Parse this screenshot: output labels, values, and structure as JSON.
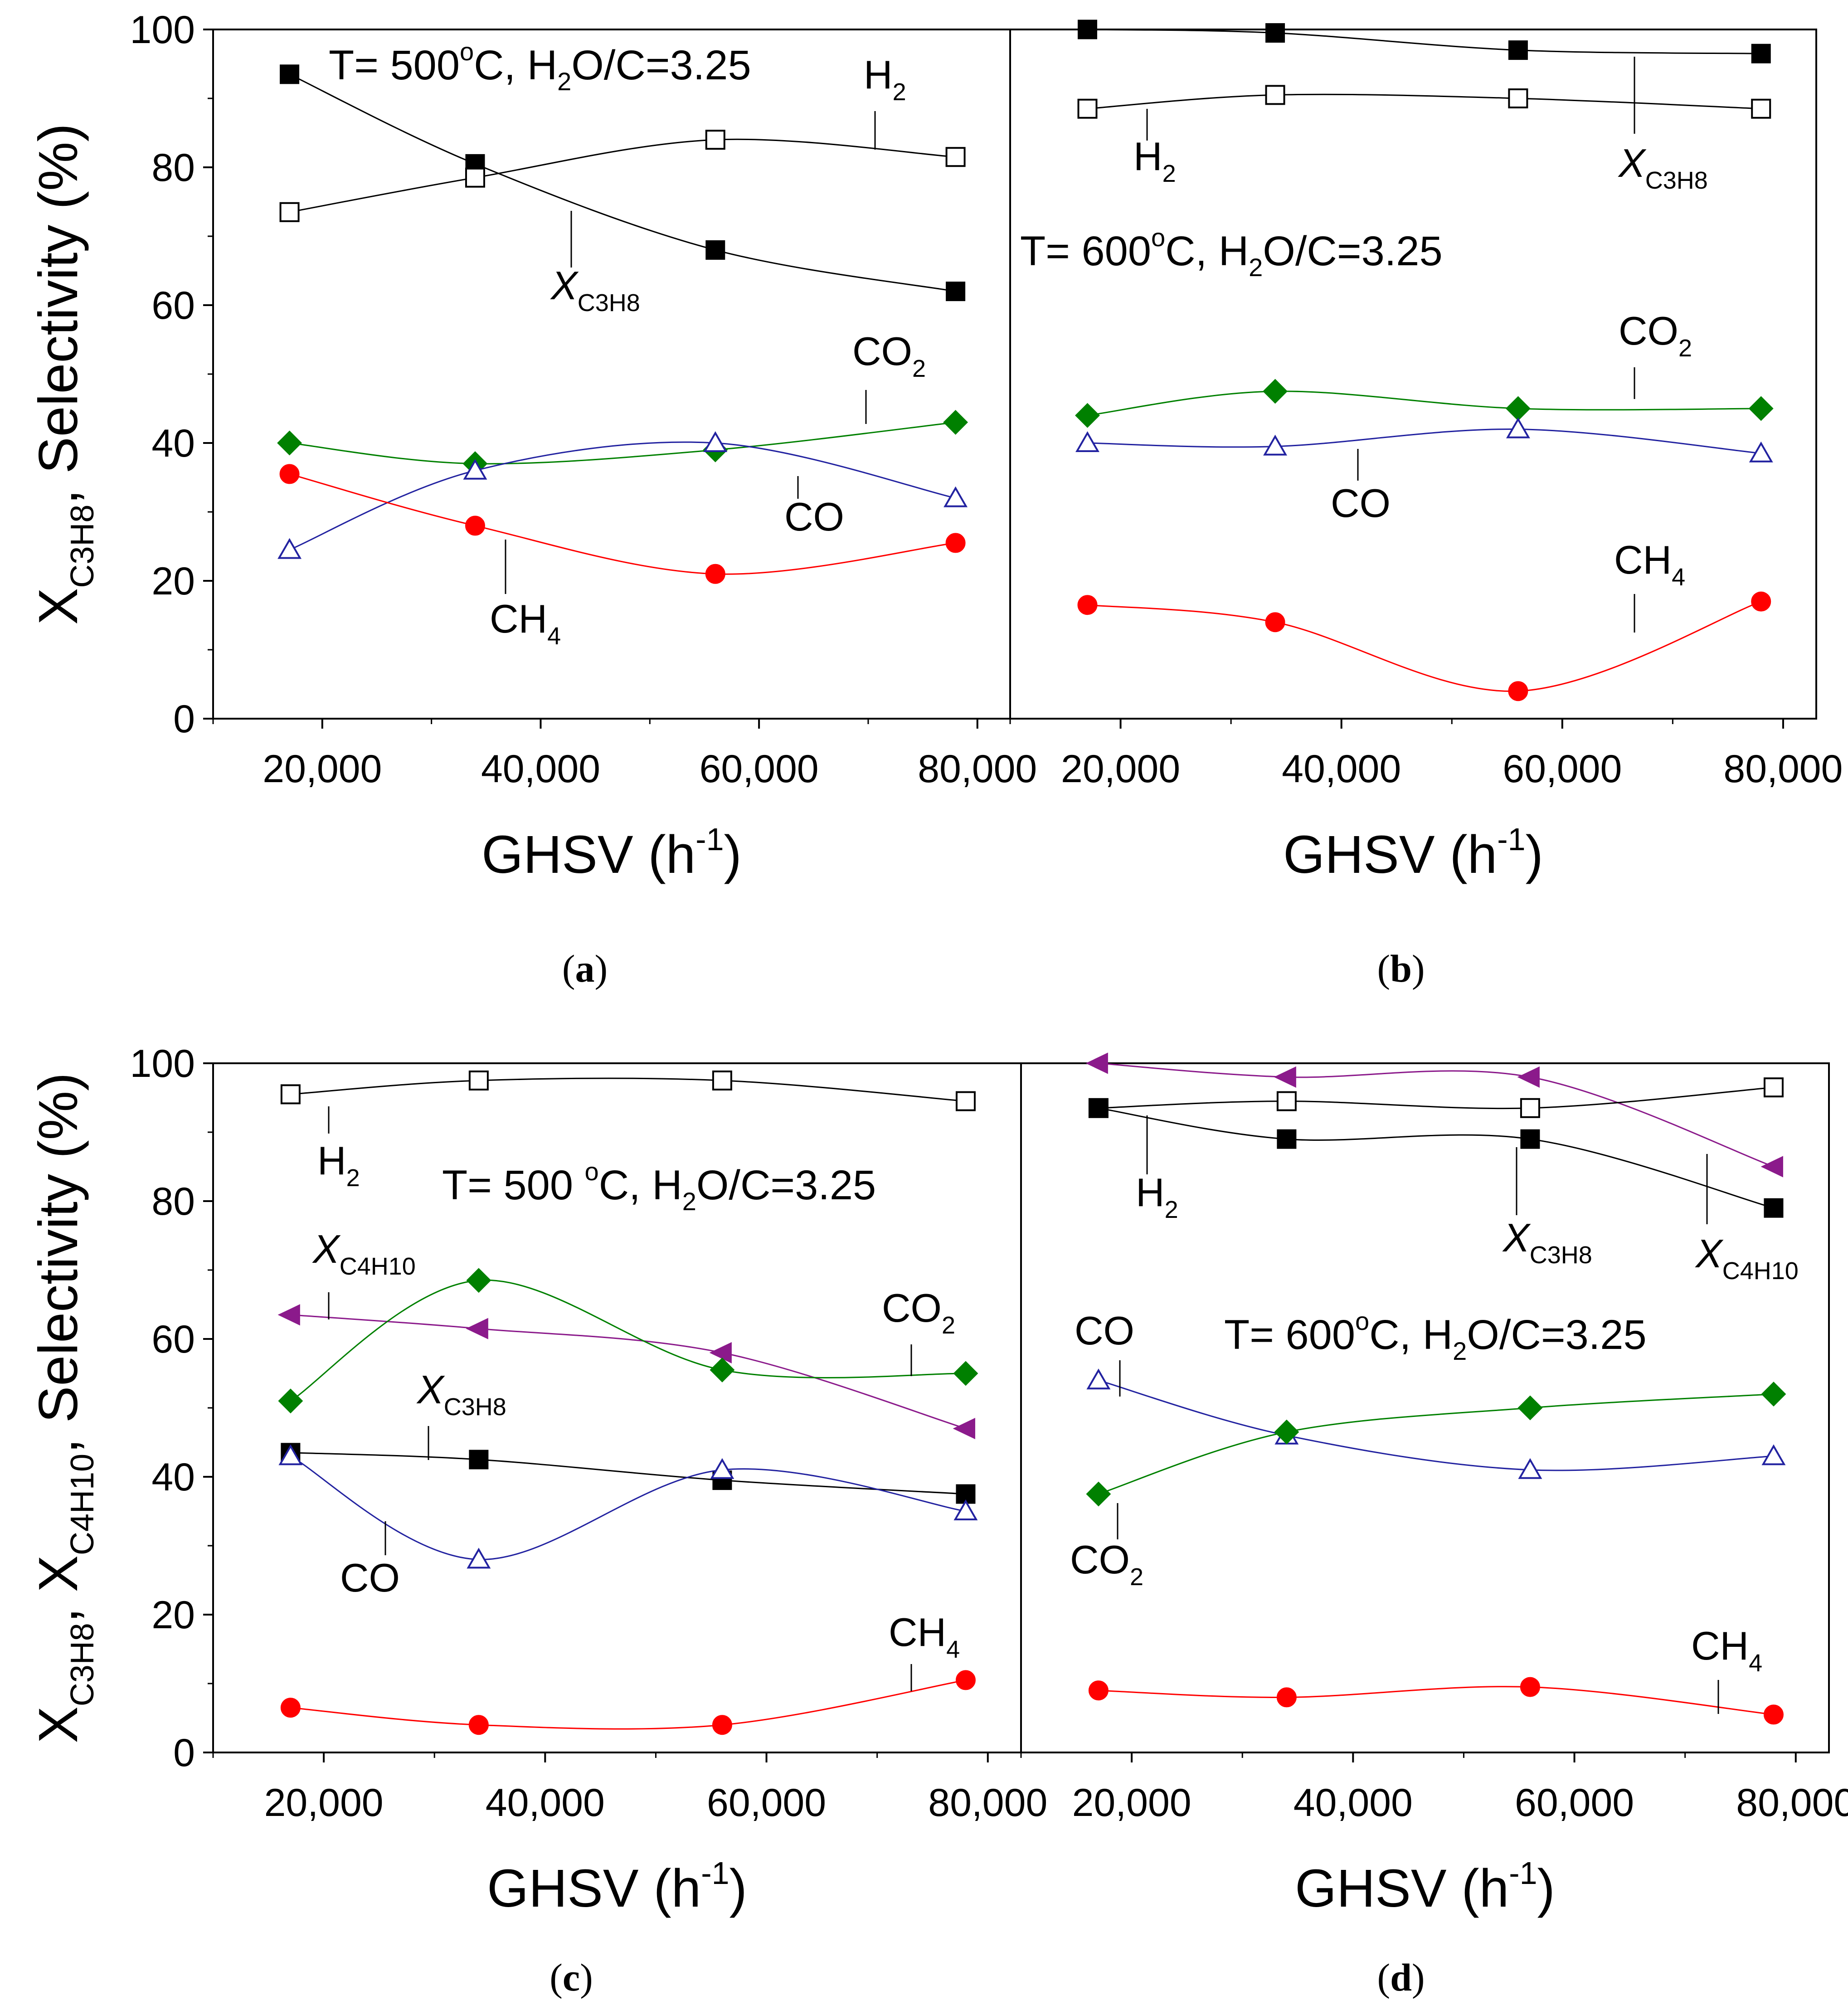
{
  "chart_data": [
    {
      "type": "line",
      "panel": "(a)",
      "caption": "a",
      "annotation": {
        "pre": "T= 500",
        "sup": "o",
        "mid": "C, H",
        "sub": "2",
        "post": "O/C=3.25"
      },
      "xlabel": "GHSV (h",
      "xlabel_sup": "-1",
      "xlabel_end": ")",
      "ylabel": "X",
      "ylabel_sub": "C3H8",
      "ylabel_rest": ", Selectivity (%)",
      "xlim": [
        10000,
        83000
      ],
      "ylim": [
        0,
        100
      ],
      "xticks": [
        20000,
        40000,
        60000,
        80000
      ],
      "xtick_labels": [
        "20,000",
        "40,000",
        "60,000",
        "80,000"
      ],
      "yticks": [
        0,
        20,
        40,
        60,
        80,
        100
      ],
      "ytick_labels": [
        "0",
        "20",
        "40",
        "60",
        "80",
        "100"
      ],
      "series": [
        {
          "name": "X_C3H8",
          "label_main": "X",
          "label_sub": "C3H8",
          "marker": "square-filled",
          "color": "#000000",
          "x": [
            17000,
            34000,
            56000,
            78000
          ],
          "values": [
            93.5,
            80.5,
            68,
            62
          ]
        },
        {
          "name": "H2",
          "label_main": "H",
          "label_sub": "2",
          "marker": "square-open",
          "color": "#000000",
          "x": [
            17000,
            34000,
            56000,
            78000
          ],
          "values": [
            73.5,
            78.5,
            84,
            81.5
          ]
        },
        {
          "name": "CO2",
          "label_main": "CO",
          "label_sub": "2",
          "marker": "diamond",
          "color": "#008000",
          "x": [
            17000,
            34000,
            56000,
            78000
          ],
          "values": [
            40,
            37,
            39,
            43
          ]
        },
        {
          "name": "CO",
          "label_main": "CO",
          "label_sub": "",
          "marker": "triangle-open",
          "color": "#2222a0",
          "x": [
            17000,
            34000,
            56000,
            78000
          ],
          "values": [
            24.5,
            36,
            40,
            32
          ]
        },
        {
          "name": "CH4",
          "label_main": "CH",
          "label_sub": "4",
          "marker": "circle",
          "color": "#ff0000",
          "x": [
            17000,
            34000,
            56000,
            78000
          ],
          "values": [
            35.5,
            28,
            21,
            25.5
          ]
        }
      ]
    },
    {
      "type": "line",
      "panel": "(b)",
      "caption": "b",
      "annotation": {
        "pre": "T= 600",
        "sup": "o",
        "mid": "C, H",
        "sub": "2",
        "post": "O/C=3.25"
      },
      "xlabel": "GHSV (h",
      "xlabel_sup": "-1",
      "xlabel_end": ")",
      "xlim": [
        10000,
        83000
      ],
      "ylim": [
        0,
        100
      ],
      "xticks": [
        20000,
        40000,
        60000,
        80000
      ],
      "xtick_labels": [
        "20,000",
        "40,000",
        "60,000",
        "80,000"
      ],
      "series": [
        {
          "name": "X_C3H8",
          "label_main": "X",
          "label_sub": "C3H8",
          "marker": "square-filled",
          "color": "#000000",
          "x": [
            17000,
            34000,
            56000,
            78000
          ],
          "values": [
            100,
            99.5,
            97,
            96.5
          ]
        },
        {
          "name": "H2",
          "label_main": "H",
          "label_sub": "2",
          "marker": "square-open",
          "color": "#000000",
          "x": [
            17000,
            34000,
            56000,
            78000
          ],
          "values": [
            88.5,
            90.5,
            90,
            88.5
          ]
        },
        {
          "name": "CO2",
          "label_main": "CO",
          "label_sub": "2",
          "marker": "diamond",
          "color": "#008000",
          "x": [
            17000,
            34000,
            56000,
            78000
          ],
          "values": [
            44,
            47.5,
            45,
            45
          ]
        },
        {
          "name": "CO",
          "label_main": "CO",
          "label_sub": "",
          "marker": "triangle-open",
          "color": "#2222a0",
          "x": [
            17000,
            34000,
            56000,
            78000
          ],
          "values": [
            40,
            39.5,
            42,
            38.5
          ]
        },
        {
          "name": "CH4",
          "label_main": "CH",
          "label_sub": "4",
          "marker": "circle",
          "color": "#ff0000",
          "x": [
            17000,
            34000,
            56000,
            78000
          ],
          "values": [
            16.5,
            14,
            4,
            17
          ]
        }
      ]
    },
    {
      "type": "line",
      "panel": "(c)",
      "caption": "c",
      "annotation": {
        "pre": "T= 500 ",
        "sup": "o",
        "mid": "C, H",
        "sub": "2",
        "post": "O/C=3.25"
      },
      "xlabel": "GHSV (h",
      "xlabel_sup": "-1",
      "xlabel_end": ")",
      "ylabel": "X",
      "ylabel_sub": "C3H8",
      "ylabel_mid": ", X",
      "ylabel_sub2": "C4H10",
      "ylabel_rest": ", Selectivity (%)",
      "xlim": [
        10000,
        83000
      ],
      "ylim": [
        0,
        100
      ],
      "xticks": [
        20000,
        40000,
        60000,
        80000
      ],
      "xtick_labels": [
        "20,000",
        "40,000",
        "60,000",
        "80,000"
      ],
      "yticks": [
        0,
        20,
        40,
        60,
        80,
        100
      ],
      "ytick_labels": [
        "0",
        "20",
        "40",
        "60",
        "80",
        "100"
      ],
      "series": [
        {
          "name": "H2",
          "label_main": "H",
          "label_sub": "2",
          "marker": "square-open",
          "color": "#000000",
          "x": [
            17000,
            34000,
            56000,
            78000
          ],
          "values": [
            95.5,
            97.5,
            97.5,
            94.5
          ]
        },
        {
          "name": "X_C4H10",
          "label_main": "X",
          "label_sub": "C4H10",
          "marker": "triangle-left",
          "color": "#8b1a8b",
          "x": [
            17000,
            34000,
            56000,
            78000
          ],
          "values": [
            63.5,
            61.5,
            58,
            47
          ]
        },
        {
          "name": "CO2",
          "label_main": "CO",
          "label_sub": "2",
          "marker": "diamond",
          "color": "#008000",
          "x": [
            17000,
            34000,
            56000,
            78000
          ],
          "values": [
            51,
            68.5,
            55.5,
            55
          ]
        },
        {
          "name": "X_C3H8",
          "label_main": "X",
          "label_sub": "C3H8",
          "marker": "square-filled",
          "color": "#000000",
          "x": [
            17000,
            34000,
            56000,
            78000
          ],
          "values": [
            43.5,
            42.5,
            39.5,
            37.5
          ]
        },
        {
          "name": "CO",
          "label_main": "CO",
          "label_sub": "",
          "marker": "triangle-open",
          "color": "#2222a0",
          "x": [
            17000,
            34000,
            56000,
            78000
          ],
          "values": [
            43,
            28,
            41,
            35
          ]
        },
        {
          "name": "CH4",
          "label_main": "CH",
          "label_sub": "4",
          "marker": "circle",
          "color": "#ff0000",
          "x": [
            17000,
            34000,
            56000,
            78000
          ],
          "values": [
            6.5,
            4,
            4,
            10.5
          ]
        }
      ]
    },
    {
      "type": "line",
      "panel": "(d)",
      "caption": "d",
      "annotation": {
        "pre": "T= 600",
        "sup": "o",
        "mid": "C, H",
        "sub": "2",
        "post": "O/C=3.25"
      },
      "xlabel": "GHSV (h",
      "xlabel_sup": "-1",
      "xlabel_end": ")",
      "xlim": [
        10000,
        83000
      ],
      "ylim": [
        0,
        100
      ],
      "xticks": [
        20000,
        40000,
        60000,
        80000
      ],
      "xtick_labels": [
        "20,000",
        "40,000",
        "60,000",
        "80,000"
      ],
      "series": [
        {
          "name": "X_C4H10",
          "label_main": "X",
          "label_sub": "C4H10",
          "marker": "triangle-left",
          "color": "#8b1a8b",
          "x": [
            17000,
            34000,
            56000,
            78000
          ],
          "values": [
            100,
            98,
            98,
            85
          ]
        },
        {
          "name": "H2",
          "label_main": "H",
          "label_sub": "2",
          "marker": "square-open",
          "color": "#000000",
          "x": [
            17000,
            34000,
            56000,
            78000
          ],
          "values": [
            93.5,
            94.5,
            93.5,
            96.5
          ]
        },
        {
          "name": "X_C3H8",
          "label_main": "X",
          "label_sub": "C3H8",
          "marker": "square-filled",
          "color": "#000000",
          "x": [
            17000,
            34000,
            56000,
            78000
          ],
          "values": [
            93.5,
            89,
            89,
            79
          ]
        },
        {
          "name": "CO",
          "label_main": "CO",
          "label_sub": "",
          "marker": "triangle-open",
          "color": "#2222a0",
          "x": [
            17000,
            34000,
            56000,
            78000
          ],
          "values": [
            54,
            46,
            41,
            43
          ]
        },
        {
          "name": "CO2",
          "label_main": "CO",
          "label_sub": "2",
          "marker": "diamond",
          "color": "#008000",
          "x": [
            17000,
            34000,
            56000,
            78000
          ],
          "values": [
            37.5,
            46.5,
            50,
            52
          ]
        },
        {
          "name": "CH4",
          "label_main": "CH",
          "label_sub": "4",
          "marker": "circle",
          "color": "#ff0000",
          "x": [
            17000,
            34000,
            56000,
            78000
          ],
          "values": [
            9,
            8,
            9.5,
            5.5
          ]
        }
      ]
    }
  ]
}
